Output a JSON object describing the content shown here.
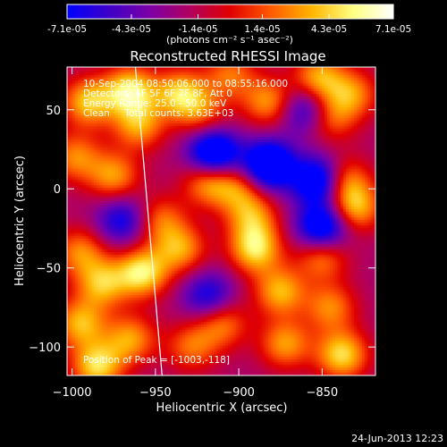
{
  "colorbar": {
    "tick_labels": [
      "-7.1e-05",
      "-4.3e-05",
      "-1.4e-05",
      "1.4e-05",
      "4.3e-05",
      "7.1e-05"
    ],
    "tick_values": [
      -7.1e-05,
      -4.3e-05,
      -1.4e-05,
      1.4e-05,
      4.3e-05,
      7.1e-05
    ],
    "range": [
      -7.1e-05,
      7.1e-05
    ],
    "unit_label": "(photons cm⁻² s⁻¹ asec⁻²)",
    "colormap": [
      "#0000ff",
      "#3c00c8",
      "#7a00a8",
      "#b00060",
      "#e00000",
      "#ff5a00",
      "#ffb400",
      "#ffff80",
      "#ffffff"
    ]
  },
  "chart_data": {
    "type": "heatmap",
    "title": "Reconstructed RHESSI Image",
    "xlabel": "Heliocentric X (arcsec)",
    "ylabel": "Heliocentric Y (arcsec)",
    "xlim": [
      -1003,
      -818
    ],
    "ylim": [
      -118,
      77
    ],
    "x_ticks": [
      -1000,
      -950,
      -900,
      -850
    ],
    "x_tick_labels": [
      "−1000",
      "−950",
      "−900",
      "−850"
    ],
    "y_ticks": [
      -100,
      -50,
      0,
      50
    ],
    "y_tick_labels": [
      "−100",
      "−50",
      "0",
      "50"
    ],
    "info_lines": [
      "10-Sep-2004 08:50:06.000 to 08:55:16.000",
      "Detectors: 4F 5F 6F 7F 8F, Att 0",
      "Energy Range: 25.0 - 50.0 keV",
      "Clean     Total counts: 3.63E+03"
    ],
    "peak_label": "Position of Peak = [-1003,-118]",
    "peak_position": [
      -1003,
      -118
    ],
    "limb_line": [
      [
        -962,
        77
      ],
      [
        -946,
        -118
      ]
    ],
    "background_level": -2e-05,
    "blobs": [
      {
        "x": -990,
        "y": 55,
        "a": 6e-05
      },
      {
        "x": -965,
        "y": 62,
        "a": 7e-05
      },
      {
        "x": -998,
        "y": 20,
        "a": 4.5e-05
      },
      {
        "x": -975,
        "y": 8,
        "a": 5e-05
      },
      {
        "x": -960,
        "y": 40,
        "a": 5e-05
      },
      {
        "x": -935,
        "y": 60,
        "a": 6e-05
      },
      {
        "x": -922,
        "y": 48,
        "a": 3.5e-05
      },
      {
        "x": -905,
        "y": 72,
        "a": 4e-05
      },
      {
        "x": -882,
        "y": 55,
        "a": 5e-05
      },
      {
        "x": -852,
        "y": 70,
        "a": 5.5e-05
      },
      {
        "x": -832,
        "y": 60,
        "a": 4.5e-05
      },
      {
        "x": -845,
        "y": 45,
        "a": 4e-05
      },
      {
        "x": -918,
        "y": 5,
        "a": 5.5e-05
      },
      {
        "x": -892,
        "y": -18,
        "a": 4.5e-05
      },
      {
        "x": -900,
        "y": 0,
        "a": 4e-05
      },
      {
        "x": -890,
        "y": -38,
        "a": 6.5e-05
      },
      {
        "x": -935,
        "y": -38,
        "a": 5e-05
      },
      {
        "x": -947,
        "y": -20,
        "a": 4e-05
      },
      {
        "x": -958,
        "y": -53,
        "a": 7e-05
      },
      {
        "x": -982,
        "y": -60,
        "a": 5.5e-05
      },
      {
        "x": -995,
        "y": -40,
        "a": 4.5e-05
      },
      {
        "x": -995,
        "y": -85,
        "a": 5.5e-05
      },
      {
        "x": -965,
        "y": -95,
        "a": 5e-05
      },
      {
        "x": -985,
        "y": -112,
        "a": 6.5e-05
      },
      {
        "x": -875,
        "y": -65,
        "a": 5.5e-05
      },
      {
        "x": -850,
        "y": -42,
        "a": 5e-05
      },
      {
        "x": -845,
        "y": -75,
        "a": 4.5e-05
      },
      {
        "x": -838,
        "y": -105,
        "a": 6.5e-05
      },
      {
        "x": -872,
        "y": -98,
        "a": 5e-05
      },
      {
        "x": -910,
        "y": -85,
        "a": 4.5e-05
      },
      {
        "x": -928,
        "y": -100,
        "a": 4e-05
      },
      {
        "x": -830,
        "y": -12,
        "a": 5.5e-05
      },
      {
        "x": -837,
        "y": 5,
        "a": 5e-05
      },
      {
        "x": -852,
        "y": 5,
        "a": -8e-05
      },
      {
        "x": -915,
        "y": 22,
        "a": -9e-05
      },
      {
        "x": -882,
        "y": 15,
        "a": -9e-05
      },
      {
        "x": -850,
        "y": -25,
        "a": -8e-05
      },
      {
        "x": -918,
        "y": -68,
        "a": -5e-05
      },
      {
        "x": -860,
        "y": 50,
        "a": -5e-05
      },
      {
        "x": -970,
        "y": -20,
        "a": -5e-05
      }
    ]
  },
  "footer": {
    "date": "24-Jun-2013 12:23"
  }
}
